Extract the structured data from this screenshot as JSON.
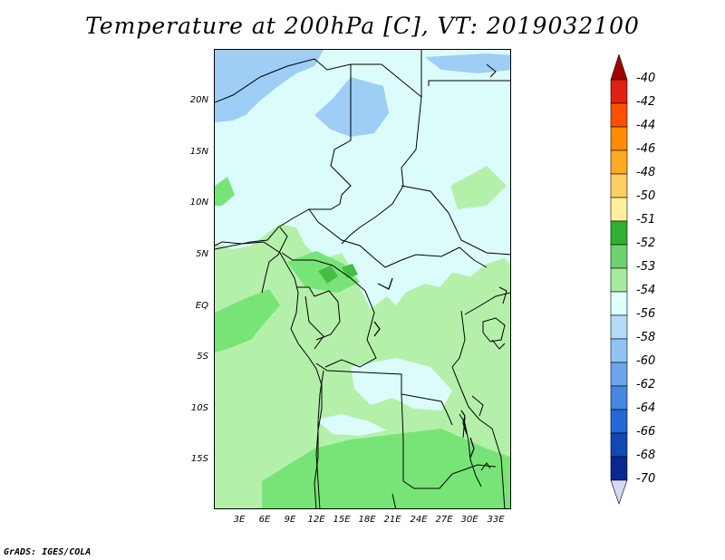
{
  "title": "Temperature at 200hPa [C], VT: 2019032100",
  "credit": "GrADS: IGES/COLA",
  "axes": {
    "lat_labels": [
      "20N",
      "15N",
      "10N",
      "5N",
      "EQ",
      "5S",
      "10S",
      "15S"
    ],
    "lon_labels": [
      "3E",
      "6E",
      "9E",
      "12E",
      "15E",
      "18E",
      "21E",
      "24E",
      "27E",
      "30E",
      "33E"
    ]
  },
  "colorbar": {
    "labels": [
      "-40",
      "-42",
      "-44",
      "-46",
      "-48",
      "-50",
      "-51",
      "-52",
      "-53",
      "-54",
      "-56",
      "-58",
      "-60",
      "-62",
      "-64",
      "-66",
      "-68",
      "-70"
    ],
    "colors": [
      "#a00000",
      "#e02010",
      "#ff5000",
      "#ff8c00",
      "#ffaa20",
      "#ffd060",
      "#fff0a0",
      "#30b030",
      "#6ed26e",
      "#a6ea9e",
      "#e0ffff",
      "#b4dcf8",
      "#90c4f4",
      "#6aa6ee",
      "#4488e2",
      "#2468d6",
      "#1048b4",
      "#082890",
      "#000060",
      "#d6d6f6"
    ]
  },
  "map_colors": {
    "band_m56": "#9ecdf5",
    "band_m54": "#dcfcfc",
    "band_m53": "#b4f0aa",
    "band_m52": "#78e478",
    "band_m51": "#46be46"
  }
}
